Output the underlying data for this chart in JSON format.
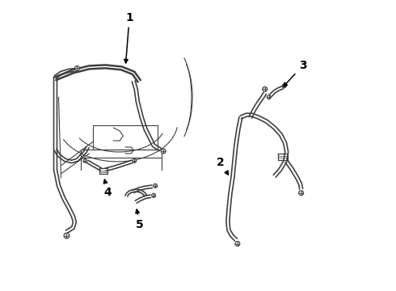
{
  "background_color": "#ffffff",
  "line_color": "#404040",
  "label_color": "#000000",
  "figsize": [
    4.9,
    3.6
  ],
  "dpi": 100
}
